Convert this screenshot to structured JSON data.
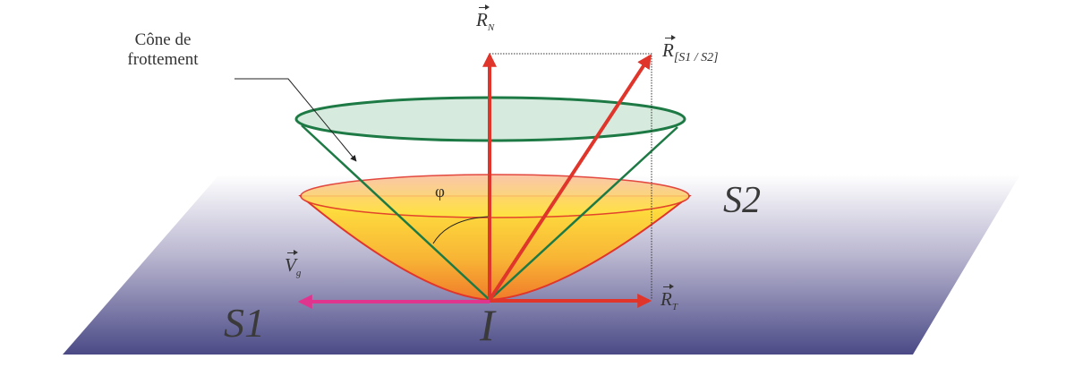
{
  "labels": {
    "cone_line1": "Cône de",
    "cone_line2": "frottement",
    "normal_force": "R",
    "normal_sub": "N",
    "resultant": "R",
    "resultant_sub": "[S1 / S2]",
    "tangential_force": "R",
    "tangential_sub": "T",
    "velocity": "V",
    "velocity_sub": "g",
    "angle": "φ",
    "solid2": "S2",
    "solid1": "S1",
    "contact_point": "I"
  },
  "colors": {
    "force_arrows": "#e0352b",
    "velocity_arrow": "#e0358f",
    "cone": "#1e7a45",
    "cone_fill": "#cfe8d8",
    "plane_top": "#ffffff",
    "plane_bottom": "#4b4a86",
    "bowl_top": "#ffe640",
    "bowl_bottom": "#f07b2a"
  }
}
